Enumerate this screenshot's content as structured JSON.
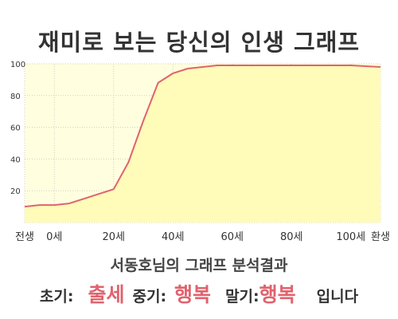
{
  "title": "재미로 보는 당신의 인생 그래프",
  "subtitle": "서동호님의 그래프 분석결과",
  "result": {
    "early_label": "초기:",
    "early_value": "출세",
    "mid_label": "중기:",
    "mid_value": "행복",
    "late_label": "말기:",
    "late_value": "행복",
    "suffix": "입니다"
  },
  "colors": {
    "plot_fill": "#ffffe0",
    "area_fill": "#fffbb8",
    "line": "#e0636e",
    "highlight": "#e0636e"
  },
  "chart_data": {
    "type": "area",
    "xlim": [
      -10,
      110
    ],
    "ylim": [
      0,
      100
    ],
    "x_ticks": [
      {
        "x": -10,
        "label": "전생"
      },
      {
        "x": 0,
        "label": "0세"
      },
      {
        "x": 20,
        "label": "20세"
      },
      {
        "x": 40,
        "label": "40세"
      },
      {
        "x": 60,
        "label": "60세"
      },
      {
        "x": 80,
        "label": "80세"
      },
      {
        "x": 100,
        "label": "100세"
      },
      {
        "x": 110,
        "label": "환생"
      }
    ],
    "y_ticks": [
      20,
      40,
      60,
      80,
      100
    ],
    "grid": true,
    "series": [
      {
        "x": [
          -10,
          -5,
          0,
          5,
          10,
          15,
          20,
          25,
          30,
          35,
          40,
          45,
          50,
          55,
          60,
          70,
          80,
          90,
          100,
          110
        ],
        "y": [
          10,
          11,
          11,
          12,
          15,
          18,
          21,
          38,
          64,
          88,
          94,
          97,
          98,
          99,
          99,
          99,
          99,
          99,
          99,
          98
        ]
      }
    ]
  }
}
